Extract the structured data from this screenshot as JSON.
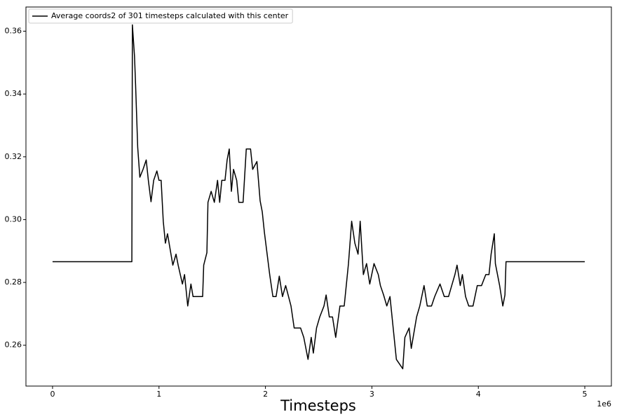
{
  "chart_data": {
    "type": "line",
    "x_label": "Timesteps",
    "x_offset_label": "1e6",
    "legend": "upper left",
    "xlim": [
      -250000,
      5250000
    ],
    "ylim": [
      0.247,
      0.3677
    ],
    "xticks": [
      {
        "value": 0,
        "label": "0"
      },
      {
        "value": 1000000,
        "label": "1"
      },
      {
        "value": 2000000,
        "label": "2"
      },
      {
        "value": 3000000,
        "label": "3"
      },
      {
        "value": 4000000,
        "label": "4"
      },
      {
        "value": 5000000,
        "label": "5"
      }
    ],
    "yticks": [
      0.26,
      0.28,
      {
        "value": 0.3,
        "label": "0.30"
      },
      0.32,
      0.34,
      0.36
    ],
    "x": [
      0,
      745000,
      750000,
      770000,
      780000,
      800000,
      820000,
      850000,
      880000,
      900000,
      925000,
      950000,
      980000,
      1000000,
      1020000,
      1040000,
      1060000,
      1080000,
      1110000,
      1130000,
      1160000,
      1180000,
      1220000,
      1240000,
      1270000,
      1300000,
      1320000,
      1410000,
      1420000,
      1450000,
      1460000,
      1490000,
      1520000,
      1550000,
      1570000,
      1590000,
      1620000,
      1640000,
      1660000,
      1680000,
      1700000,
      1730000,
      1750000,
      1790000,
      1820000,
      1860000,
      1880000,
      1920000,
      1950000,
      1970000,
      1990000,
      2040000,
      2070000,
      2100000,
      2130000,
      2160000,
      2190000,
      2240000,
      2270000,
      2330000,
      2360000,
      2400000,
      2430000,
      2450000,
      2480000,
      2510000,
      2550000,
      2570000,
      2600000,
      2630000,
      2660000,
      2700000,
      2740000,
      2780000,
      2810000,
      2840000,
      2870000,
      2890000,
      2920000,
      2950000,
      2980000,
      3020000,
      3060000,
      3080000,
      3110000,
      3140000,
      3170000,
      3200000,
      3230000,
      3290000,
      3310000,
      3350000,
      3370000,
      3420000,
      3450000,
      3490000,
      3520000,
      3560000,
      3590000,
      3640000,
      3680000,
      3720000,
      3750000,
      3780000,
      3800000,
      3830000,
      3850000,
      3880000,
      3910000,
      3950000,
      3990000,
      4030000,
      4070000,
      4100000,
      4120000,
      4150000,
      4160000,
      4200000,
      4230000,
      4250000,
      4260000,
      5000000
    ],
    "series": [
      {
        "name": "Average coords2 of 301 timesteps calculated with this center",
        "color": "#000000",
        "values": [
          0.2866,
          0.2866,
          0.362,
          0.352,
          0.343,
          0.323,
          0.3135,
          0.316,
          0.319,
          0.3125,
          0.3057,
          0.3125,
          0.3155,
          0.3125,
          0.3125,
          0.2995,
          0.2925,
          0.2955,
          0.2895,
          0.2855,
          0.289,
          0.2855,
          0.2795,
          0.2825,
          0.2725,
          0.2795,
          0.2755,
          0.2755,
          0.2855,
          0.2895,
          0.3055,
          0.309,
          0.3055,
          0.3125,
          0.3055,
          0.3125,
          0.3125,
          0.319,
          0.3225,
          0.309,
          0.316,
          0.3125,
          0.3055,
          0.3055,
          0.3225,
          0.3225,
          0.316,
          0.3185,
          0.306,
          0.3025,
          0.296,
          0.2825,
          0.2755,
          0.2755,
          0.282,
          0.2755,
          0.279,
          0.2725,
          0.2655,
          0.2655,
          0.2625,
          0.2555,
          0.2625,
          0.2575,
          0.2655,
          0.269,
          0.2725,
          0.276,
          0.269,
          0.269,
          0.2625,
          0.2725,
          0.2725,
          0.286,
          0.2995,
          0.2925,
          0.289,
          0.2995,
          0.2825,
          0.286,
          0.2795,
          0.286,
          0.2825,
          0.279,
          0.276,
          0.2725,
          0.2755,
          0.2655,
          0.2555,
          0.2525,
          0.2625,
          0.2655,
          0.259,
          0.269,
          0.2725,
          0.279,
          0.2725,
          0.2725,
          0.2755,
          0.2795,
          0.2755,
          0.2755,
          0.279,
          0.2825,
          0.2855,
          0.279,
          0.2825,
          0.2755,
          0.2725,
          0.2725,
          0.279,
          0.279,
          0.2825,
          0.2825,
          0.289,
          0.2955,
          0.286,
          0.279,
          0.2725,
          0.276,
          0.2866,
          0.2866
        ]
      }
    ]
  }
}
